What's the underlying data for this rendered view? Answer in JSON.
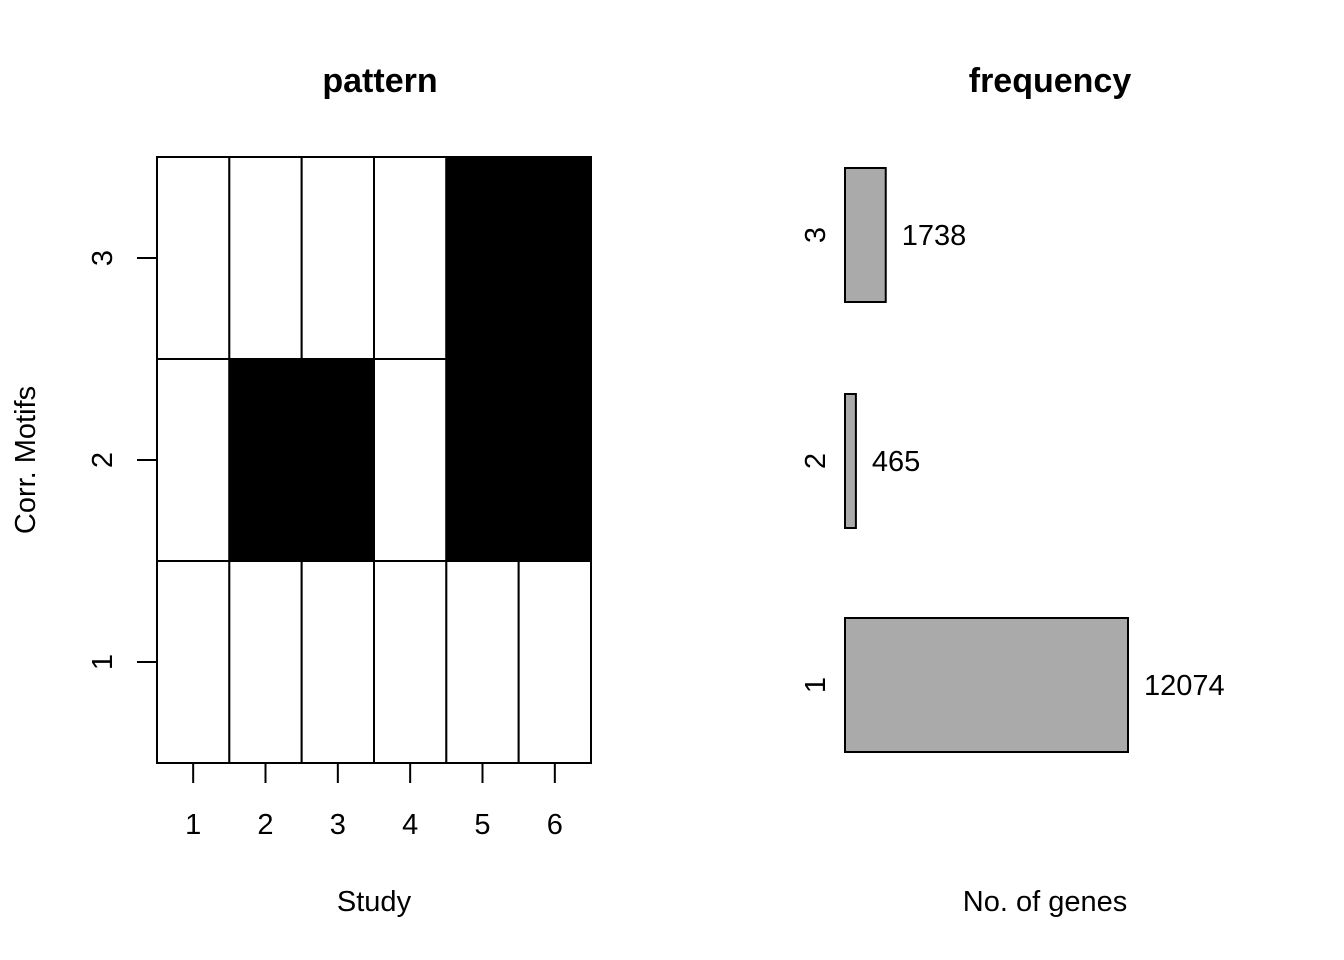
{
  "chart_data": [
    {
      "type": "heatmap",
      "title": "pattern",
      "xlabel": "Study",
      "ylabel": "Corr. Motifs",
      "x": [
        "1",
        "2",
        "3",
        "4",
        "5",
        "6"
      ],
      "y": [
        "1",
        "2",
        "3"
      ],
      "cells": [
        [
          0,
          0,
          0,
          0,
          0,
          0
        ],
        [
          0,
          1,
          1,
          0,
          1,
          1
        ],
        [
          0,
          0,
          0,
          0,
          1,
          1
        ]
      ],
      "colors": {
        "on": "#000000",
        "off": "#ffffff"
      },
      "grid": true
    },
    {
      "type": "bar",
      "orientation": "horizontal",
      "title": "frequency",
      "xlabel": "No. of genes",
      "categories": [
        "1",
        "2",
        "3"
      ],
      "values": [
        12074,
        465,
        1738
      ],
      "labels": [
        "12074",
        "465",
        "1738"
      ],
      "bar_color": "#aaaaaa"
    }
  ]
}
